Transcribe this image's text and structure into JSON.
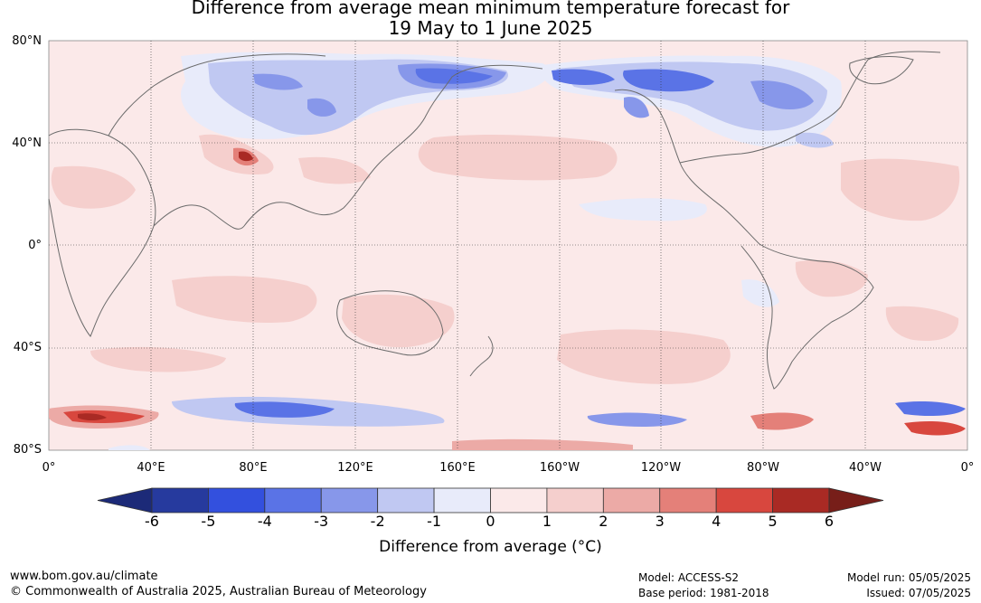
{
  "title": {
    "line1": "Difference from average mean minimum temperature forecast for",
    "line2": "19 May to 1 June 2025"
  },
  "lat_labels": [
    "80°N",
    "40°N",
    "0°",
    "40°S",
    "80°S"
  ],
  "lon_labels": [
    "0°",
    "40°E",
    "80°E",
    "120°E",
    "160°E",
    "160°W",
    "120°W",
    "80°W",
    "40°W",
    "0°"
  ],
  "colorbar": {
    "ticks": [
      "-6",
      "-5",
      "-4",
      "-3",
      "-2",
      "-1",
      "0",
      "1",
      "2",
      "3",
      "4",
      "5",
      "6"
    ],
    "colors": [
      "#263a9e",
      "#3350de",
      "#5a73e6",
      "#8797ea",
      "#c0c8f2",
      "#e8ebfa",
      "#fbe9e9",
      "#f5cfcd",
      "#ecaaa6",
      "#e48079",
      "#d8473e",
      "#a92a24"
    ],
    "low_color": "#1c2a78",
    "high_color": "#771e19",
    "label": "Difference from average (°C)"
  },
  "footer": {
    "website": "www.bom.gov.au/climate",
    "copyright": "© Commonwealth of Australia 2025, Australian Bureau of Meteorology",
    "model": "Model: ACCESS-S2",
    "base_period": "Base period: 1981-2018",
    "model_run": "Model run: 05/05/2025",
    "issued": "Issued: 07/05/2025"
  }
}
